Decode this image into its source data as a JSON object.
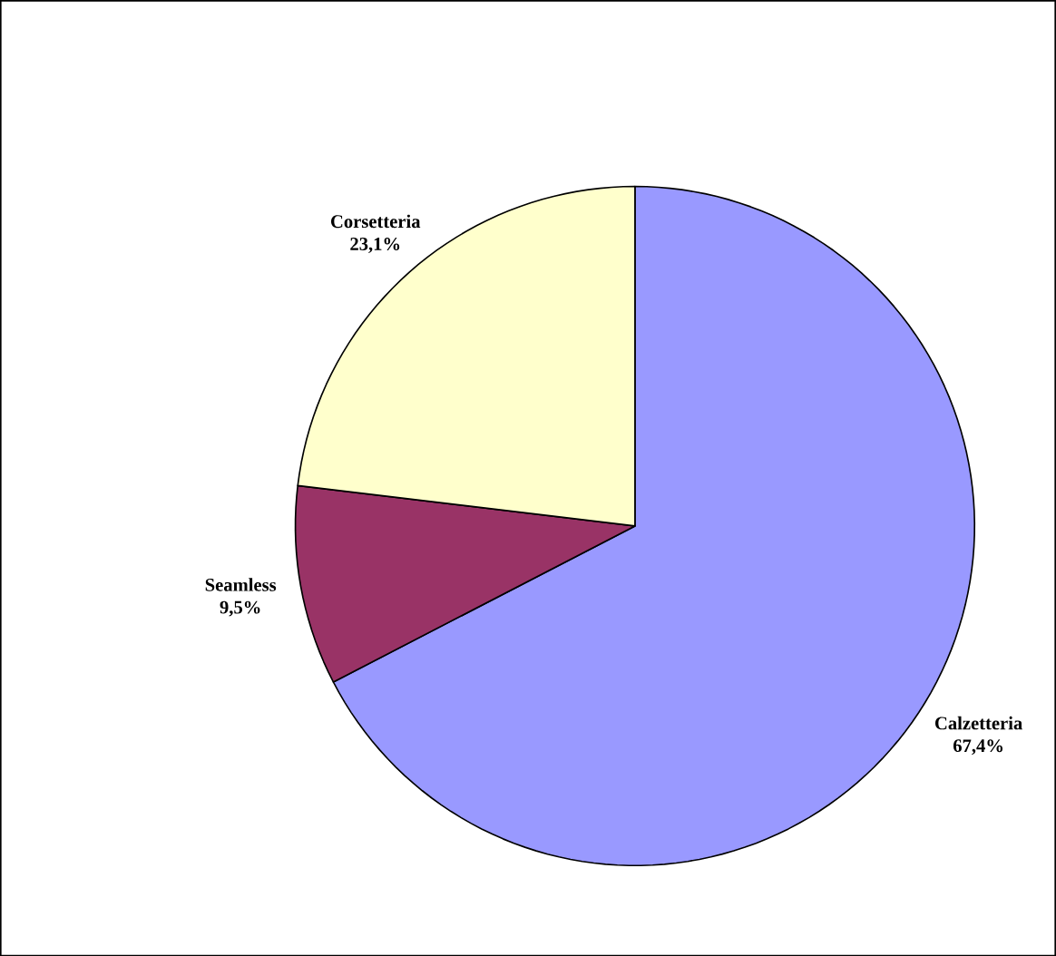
{
  "chart_data": {
    "type": "pie",
    "categories": [
      "Calzetteria",
      "Seamless",
      "Corsetteria"
    ],
    "values": [
      67.4,
      9.5,
      23.1
    ],
    "colors": [
      "#9999ff",
      "#993366",
      "#ffffcc"
    ],
    "value_labels": [
      "67,4%",
      "9,5%",
      "23,1%"
    ]
  }
}
